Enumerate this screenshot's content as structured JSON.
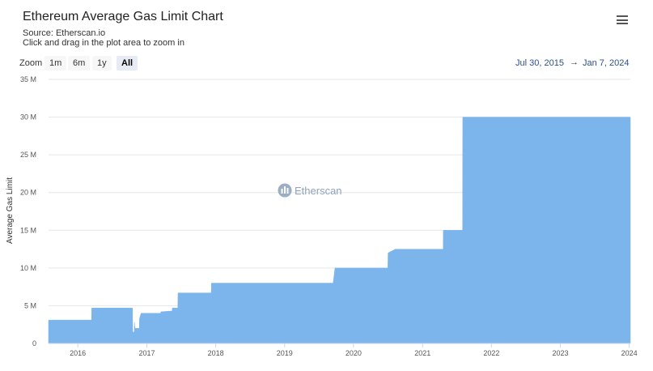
{
  "header": {
    "title": "Ethereum Average Gas Limit Chart",
    "source": "Source: Etherscan.io",
    "hint": "Click and drag in the plot area to zoom in"
  },
  "zoom": {
    "label": "Zoom",
    "buttons": [
      "1m",
      "6m",
      "1y",
      "All"
    ],
    "active": "All"
  },
  "range": {
    "from": "Jul 30, 2015",
    "arrow": "→",
    "to": "Jan 7, 2024"
  },
  "watermark": "Etherscan",
  "colors": {
    "area": "#7cb5ec",
    "grid": "#e6e6e6"
  },
  "chart_data": {
    "type": "area",
    "ylabel": "Average Gas Limit",
    "xlabel": "",
    "ylim": [
      0,
      35000000
    ],
    "xlim": [
      "2015-07-30",
      "2024-01-07"
    ],
    "y_ticks": [
      {
        "value": 0,
        "label": "0"
      },
      {
        "value": 5000000,
        "label": "5 M"
      },
      {
        "value": 10000000,
        "label": "10 M"
      },
      {
        "value": 15000000,
        "label": "15 M"
      },
      {
        "value": 20000000,
        "label": "20 M"
      },
      {
        "value": 25000000,
        "label": "25 M"
      },
      {
        "value": 30000000,
        "label": "30 M"
      },
      {
        "value": 35000000,
        "label": "35 M"
      }
    ],
    "x_ticks": [
      {
        "date": "2016-01-01",
        "label": "2016"
      },
      {
        "date": "2017-01-01",
        "label": "2017"
      },
      {
        "date": "2018-01-01",
        "label": "2018"
      },
      {
        "date": "2019-01-01",
        "label": "2019"
      },
      {
        "date": "2020-01-01",
        "label": "2020"
      },
      {
        "date": "2021-01-01",
        "label": "2021"
      },
      {
        "date": "2022-01-01",
        "label": "2022"
      },
      {
        "date": "2023-01-01",
        "label": "2023"
      },
      {
        "date": "2024-01-01",
        "label": "2024"
      }
    ],
    "grid": true,
    "series": [
      {
        "points": [
          [
            "2015-07-30",
            3100000
          ],
          [
            "2016-03-14",
            3100000
          ],
          [
            "2016-03-15",
            4700000
          ],
          [
            "2016-10-17",
            4700000
          ],
          [
            "2016-10-18",
            1500000
          ],
          [
            "2016-10-26",
            1500000
          ],
          [
            "2016-10-27",
            2800000
          ],
          [
            "2016-10-30",
            2000000
          ],
          [
            "2016-11-22",
            2000000
          ],
          [
            "2016-11-23",
            3300000
          ],
          [
            "2016-12-01",
            4000000
          ],
          [
            "2017-03-15",
            4000000
          ],
          [
            "2017-03-16",
            4200000
          ],
          [
            "2017-05-15",
            4300000
          ],
          [
            "2017-05-16",
            4700000
          ],
          [
            "2017-06-14",
            4700000
          ],
          [
            "2017-06-15",
            6700000
          ],
          [
            "2017-12-08",
            6700000
          ],
          [
            "2017-12-09",
            8000000
          ],
          [
            "2019-09-15",
            8000000
          ],
          [
            "2019-09-25",
            10000000
          ],
          [
            "2020-07-01",
            10000000
          ],
          [
            "2020-07-02",
            12000000
          ],
          [
            "2020-08-10",
            12500000
          ],
          [
            "2021-04-20",
            12500000
          ],
          [
            "2021-04-21",
            15000000
          ],
          [
            "2021-08-01",
            15000000
          ],
          [
            "2021-08-02",
            30000000
          ],
          [
            "2024-01-07",
            30000000
          ]
        ]
      }
    ]
  }
}
